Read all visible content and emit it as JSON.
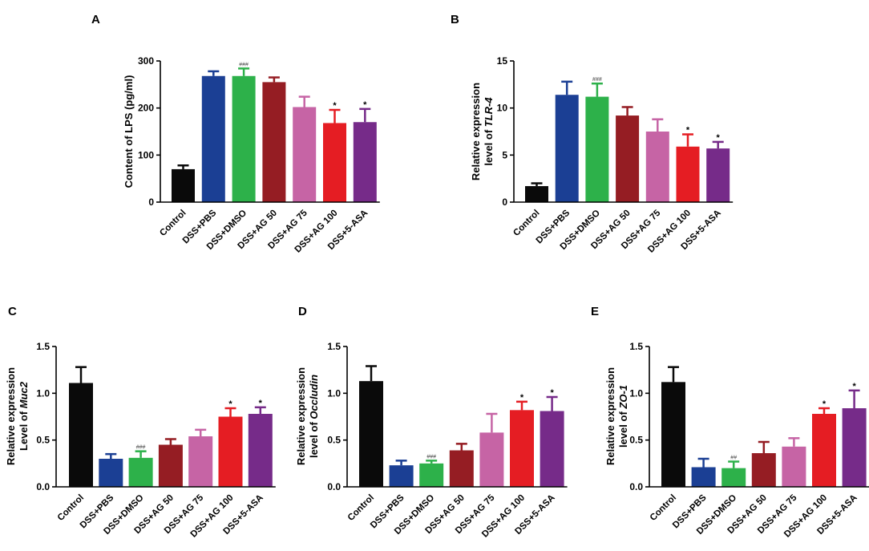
{
  "colors": [
    "#0a0a0a",
    "#1b3f94",
    "#2db14a",
    "#951d23",
    "#c664a5",
    "#e51d23",
    "#762b89"
  ],
  "chart_data": [
    {
      "type": "bar",
      "panel_label": "A",
      "ylabel_prefix": "Content of LPS (pg/ml)",
      "ylabel_italic": "",
      "ylabel_line1": "",
      "ylim": [
        0,
        300
      ],
      "yticks": [
        "0",
        "100",
        "200",
        "300"
      ],
      "categories": [
        "Control",
        "DSS+PBS",
        "DSS+DMSO",
        "DSS+AG 50",
        "DSS+AG 75",
        "DSS+AG 100",
        "DSS+5-ASA"
      ],
      "values": [
        70,
        268,
        268,
        255,
        202,
        168,
        170
      ],
      "errors": [
        8,
        10,
        16,
        10,
        22,
        28,
        28
      ],
      "significance": [
        "",
        "",
        "###",
        "",
        "",
        "*",
        "*"
      ]
    },
    {
      "type": "bar",
      "panel_label": "B",
      "ylabel_line1": "Relative expression",
      "ylabel_prefix": "level of ",
      "ylabel_italic": "TLR-4",
      "ylim": [
        0,
        15
      ],
      "yticks": [
        "0",
        "5",
        "10",
        "15"
      ],
      "categories": [
        "Control",
        "DSS+PBS",
        "DSS+DMSO",
        "DSS+AG 50",
        "DSS+AG 75",
        "DSS+AG 100",
        "DSS+5-ASA"
      ],
      "values": [
        1.7,
        11.4,
        11.2,
        9.2,
        7.5,
        5.9,
        5.7
      ],
      "errors": [
        0.3,
        1.4,
        1.4,
        0.9,
        1.3,
        1.3,
        0.7
      ],
      "significance": [
        "",
        "",
        "###",
        "",
        "",
        "*",
        "*"
      ]
    },
    {
      "type": "bar",
      "panel_label": "C",
      "ylabel_line1": "Relative expression",
      "ylabel_prefix": "Level of ",
      "ylabel_italic": "Muc2",
      "ylim": [
        0,
        1.5
      ],
      "yticks": [
        "0.0",
        "0.5",
        "1.0",
        "1.5"
      ],
      "categories": [
        "Control",
        "DSS+PBS",
        "DSS+DMSO",
        "DSS+AG 50",
        "DSS+AG 75",
        "DSS+AG 100",
        "DSS+5-ASA"
      ],
      "values": [
        1.11,
        0.3,
        0.31,
        0.45,
        0.54,
        0.75,
        0.78
      ],
      "errors": [
        0.17,
        0.05,
        0.07,
        0.06,
        0.07,
        0.09,
        0.07
      ],
      "significance": [
        "",
        "",
        "###",
        "",
        "",
        "*",
        "*"
      ]
    },
    {
      "type": "bar",
      "panel_label": "D",
      "ylabel_line1": "Relative expression",
      "ylabel_prefix": "level of ",
      "ylabel_italic": "Occludin",
      "ylim": [
        0,
        1.5
      ],
      "yticks": [
        "0.0",
        "0.5",
        "1.0",
        "1.5"
      ],
      "categories": [
        "Control",
        "DSS+PBS",
        "DSS+DMSO",
        "DSS+AG 50",
        "DSS+AG 75",
        "DSS+AG 100",
        "DSS+5-ASA"
      ],
      "values": [
        1.13,
        0.23,
        0.25,
        0.39,
        0.58,
        0.82,
        0.81
      ],
      "errors": [
        0.16,
        0.05,
        0.03,
        0.07,
        0.2,
        0.09,
        0.15
      ],
      "significance": [
        "",
        "",
        "###",
        "",
        "",
        "*",
        "*"
      ]
    },
    {
      "type": "bar",
      "panel_label": "E",
      "ylabel_line1": "Relative expression",
      "ylabel_prefix": "level of ",
      "ylabel_italic": "ZO-1",
      "ylim": [
        0,
        1.5
      ],
      "yticks": [
        "0.0",
        "0.5",
        "1.0",
        "1.5"
      ],
      "categories": [
        "Control",
        "DSS+PBS",
        "DSS+DMSO",
        "DSS+AG 50",
        "DSS+AG 75",
        "DSS+AG 100",
        "DSS+5-ASA"
      ],
      "values": [
        1.12,
        0.21,
        0.2,
        0.36,
        0.43,
        0.78,
        0.84
      ],
      "errors": [
        0.16,
        0.09,
        0.07,
        0.12,
        0.09,
        0.06,
        0.19
      ],
      "significance": [
        "",
        "",
        "##",
        "",
        "",
        "*",
        "*"
      ]
    }
  ]
}
